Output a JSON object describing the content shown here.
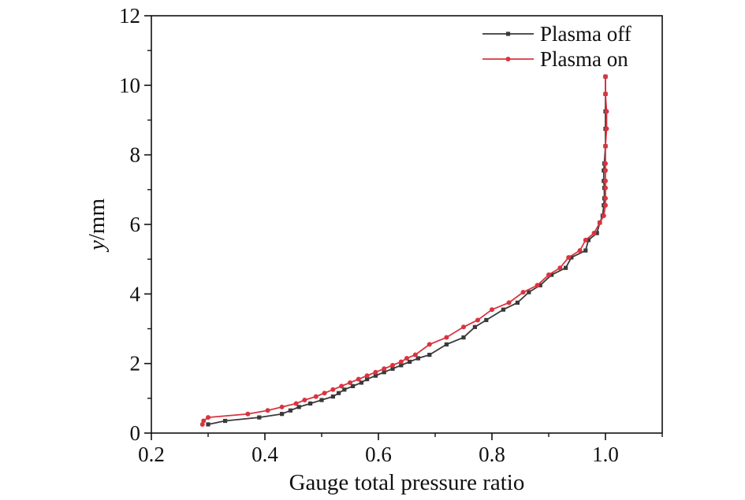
{
  "chart_data": {
    "type": "line",
    "title": "",
    "xlabel": "Gauge total pressure ratio",
    "ylabel_italic": "y",
    "ylabel_rest": "/mm",
    "xlim": [
      0.2,
      1.1
    ],
    "ylim": [
      0,
      12
    ],
    "x_ticks": [
      0.2,
      0.4,
      0.6,
      0.8,
      1.0
    ],
    "x_tick_labels": [
      "0.2",
      "0.4",
      "0.6",
      "0.8",
      "1.0"
    ],
    "y_ticks": [
      0,
      2,
      4,
      6,
      8,
      10,
      12
    ],
    "y_tick_labels": [
      "0",
      "2",
      "4",
      "6",
      "8",
      "10",
      "12"
    ],
    "grid": false,
    "legend_position": "top-right",
    "series": [
      {
        "name": "Plasma off",
        "color": "#3a3a3a",
        "marker": "square",
        "points": [
          [
            0.3,
            0.25
          ],
          [
            0.33,
            0.35
          ],
          [
            0.39,
            0.45
          ],
          [
            0.43,
            0.55
          ],
          [
            0.445,
            0.65
          ],
          [
            0.46,
            0.75
          ],
          [
            0.48,
            0.85
          ],
          [
            0.5,
            0.95
          ],
          [
            0.52,
            1.05
          ],
          [
            0.53,
            1.15
          ],
          [
            0.54,
            1.25
          ],
          [
            0.555,
            1.35
          ],
          [
            0.57,
            1.45
          ],
          [
            0.58,
            1.55
          ],
          [
            0.595,
            1.65
          ],
          [
            0.61,
            1.75
          ],
          [
            0.625,
            1.85
          ],
          [
            0.64,
            1.95
          ],
          [
            0.655,
            2.05
          ],
          [
            0.67,
            2.15
          ],
          [
            0.69,
            2.25
          ],
          [
            0.72,
            2.55
          ],
          [
            0.75,
            2.75
          ],
          [
            0.77,
            3.05
          ],
          [
            0.79,
            3.25
          ],
          [
            0.82,
            3.55
          ],
          [
            0.845,
            3.75
          ],
          [
            0.865,
            4.05
          ],
          [
            0.885,
            4.25
          ],
          [
            0.905,
            4.55
          ],
          [
            0.93,
            4.75
          ],
          [
            0.94,
            5.05
          ],
          [
            0.965,
            5.25
          ],
          [
            0.97,
            5.55
          ],
          [
            0.985,
            5.75
          ],
          [
            0.99,
            6.05
          ],
          [
            0.995,
            6.25
          ],
          [
            0.997,
            6.55
          ],
          [
            0.998,
            6.75
          ],
          [
            0.998,
            7.05
          ],
          [
            0.997,
            7.25
          ],
          [
            0.997,
            7.55
          ],
          [
            0.998,
            7.75
          ],
          [
            1.0,
            8.25
          ],
          [
            1.0,
            8.75
          ],
          [
            1.0,
            9.25
          ],
          [
            1.0,
            9.75
          ],
          [
            1.0,
            10.25
          ]
        ]
      },
      {
        "name": "Plasma on",
        "color": "#d9343f",
        "marker": "circle",
        "points": [
          [
            0.29,
            0.25
          ],
          [
            0.292,
            0.35
          ],
          [
            0.3,
            0.45
          ],
          [
            0.37,
            0.55
          ],
          [
            0.405,
            0.65
          ],
          [
            0.43,
            0.75
          ],
          [
            0.455,
            0.85
          ],
          [
            0.47,
            0.95
          ],
          [
            0.49,
            1.05
          ],
          [
            0.505,
            1.15
          ],
          [
            0.52,
            1.25
          ],
          [
            0.535,
            1.35
          ],
          [
            0.55,
            1.45
          ],
          [
            0.565,
            1.55
          ],
          [
            0.58,
            1.65
          ],
          [
            0.595,
            1.75
          ],
          [
            0.61,
            1.85
          ],
          [
            0.625,
            1.95
          ],
          [
            0.64,
            2.05
          ],
          [
            0.65,
            2.15
          ],
          [
            0.665,
            2.25
          ],
          [
            0.69,
            2.55
          ],
          [
            0.72,
            2.75
          ],
          [
            0.75,
            3.05
          ],
          [
            0.775,
            3.25
          ],
          [
            0.8,
            3.55
          ],
          [
            0.83,
            3.75
          ],
          [
            0.855,
            4.05
          ],
          [
            0.88,
            4.25
          ],
          [
            0.9,
            4.55
          ],
          [
            0.92,
            4.75
          ],
          [
            0.935,
            5.05
          ],
          [
            0.955,
            5.25
          ],
          [
            0.965,
            5.55
          ],
          [
            0.98,
            5.75
          ],
          [
            0.99,
            6.05
          ],
          [
            0.997,
            6.25
          ],
          [
            1.0,
            6.55
          ],
          [
            1.0,
            6.75
          ],
          [
            1.0,
            7.05
          ],
          [
            1.0,
            7.25
          ],
          [
            1.0,
            7.55
          ],
          [
            1.0,
            7.75
          ],
          [
            1.0,
            8.25
          ],
          [
            1.002,
            8.75
          ],
          [
            1.002,
            9.25
          ],
          [
            1.0,
            9.75
          ],
          [
            1.0,
            10.25
          ]
        ]
      }
    ]
  }
}
